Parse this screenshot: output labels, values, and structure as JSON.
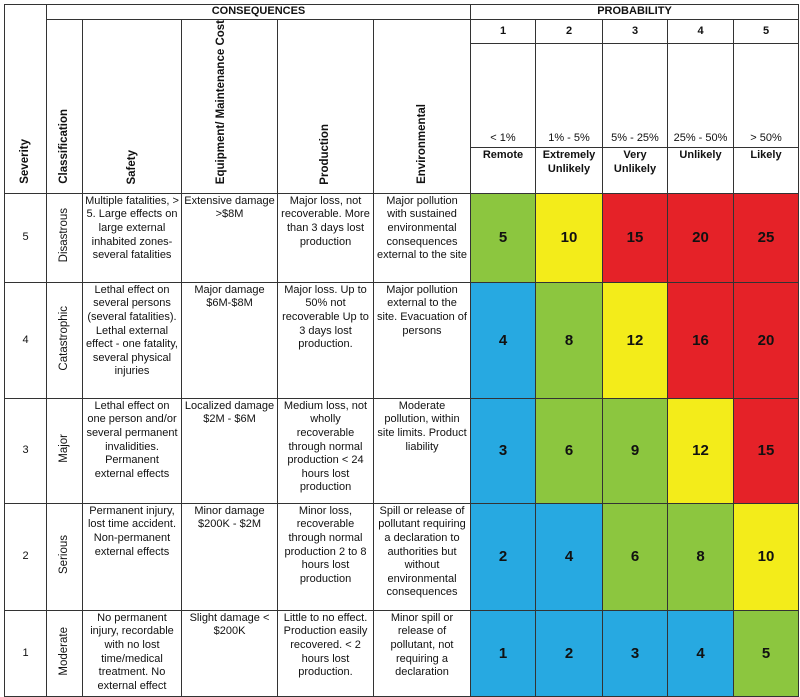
{
  "header": {
    "severity": "Severity",
    "consequences": "CONSEQUENCES",
    "probability": "PROBABILITY",
    "columns": [
      "Classification",
      "Safety",
      "Equipment/ Maintenance Cost",
      "Production",
      "Environmental"
    ],
    "probability_levels": [
      {
        "number": "1",
        "range": "< 1%",
        "label": "Remote"
      },
      {
        "number": "2",
        "range": "1% - 5%",
        "label": "Extremely Unlikely"
      },
      {
        "number": "3",
        "range": "5% - 25%",
        "label": "Very Unlikely"
      },
      {
        "number": "4",
        "range": "25% - 50%",
        "label": "Unlikely"
      },
      {
        "number": "5",
        "range": "> 50%",
        "label": "Likely"
      }
    ]
  },
  "colors": {
    "green": "#8cc63f",
    "yellow": "#f3ec1a",
    "red": "#e52228",
    "blue": "#27a9e1"
  },
  "rows": [
    {
      "severity": "5",
      "classification": "Disastrous",
      "safety": "Multiple fatalities, > 5. Large effects on large external inhabited zones-several fatalities",
      "equipment": "Extensive damage >$8M",
      "production": "Major loss, not recoverable. More than 3 days lost production",
      "environmental": "Major pollution with sustained environmental consequences external to the site",
      "scores": [
        {
          "value": "5",
          "color": "green"
        },
        {
          "value": "10",
          "color": "yellow"
        },
        {
          "value": "15",
          "color": "red"
        },
        {
          "value": "20",
          "color": "red"
        },
        {
          "value": "25",
          "color": "red"
        }
      ]
    },
    {
      "severity": "4",
      "classification": "Catastrophic",
      "safety": "Lethal effect on several persons (several fatalities). Lethal external effect - one fatality, several physical injuries",
      "equipment": "Major damage $6M-$8M",
      "production": "Major loss. Up to 50% not recoverable Up to 3 days lost production.",
      "environmental": "Major pollution external to the site. Evacuation of persons",
      "scores": [
        {
          "value": "4",
          "color": "blue"
        },
        {
          "value": "8",
          "color": "green"
        },
        {
          "value": "12",
          "color": "yellow"
        },
        {
          "value": "16",
          "color": "red"
        },
        {
          "value": "20",
          "color": "red"
        }
      ]
    },
    {
      "severity": "3",
      "classification": "Major",
      "safety": "Lethal effect on one person and/or several permanent invalidities. Permanent external effects",
      "equipment": "Localized damage $2M - $6M",
      "production": "Medium loss, not wholly recoverable through normal production < 24 hours lost production",
      "environmental": "Moderate pollution, within site limits. Product liability",
      "scores": [
        {
          "value": "3",
          "color": "blue"
        },
        {
          "value": "6",
          "color": "green"
        },
        {
          "value": "9",
          "color": "green"
        },
        {
          "value": "12",
          "color": "yellow"
        },
        {
          "value": "15",
          "color": "red"
        }
      ]
    },
    {
      "severity": "2",
      "classification": "Serious",
      "safety": "Permanent injury, lost time accident. Non-permanent external effects",
      "equipment": "Minor damage $200K - $2M",
      "production": "Minor loss, recoverable through normal production 2 to 8 hours lost production",
      "environmental": "Spill or release of pollutant requiring a declaration to authorities but without environmental consequences",
      "scores": [
        {
          "value": "2",
          "color": "blue"
        },
        {
          "value": "4",
          "color": "blue"
        },
        {
          "value": "6",
          "color": "green"
        },
        {
          "value": "8",
          "color": "green"
        },
        {
          "value": "10",
          "color": "yellow"
        }
      ]
    },
    {
      "severity": "1",
      "classification": "Moderate",
      "safety": "No permanent injury, recordable with no lost time/medical treatment. No external effect",
      "equipment": "Slight damage < $200K",
      "production": "Little to no effect. Production easily recovered. < 2 hours lost production.",
      "environmental": "Minor spill or release of pollutant, not requiring a declaration",
      "scores": [
        {
          "value": "1",
          "color": "blue"
        },
        {
          "value": "2",
          "color": "blue"
        },
        {
          "value": "3",
          "color": "blue"
        },
        {
          "value": "4",
          "color": "blue"
        },
        {
          "value": "5",
          "color": "green"
        }
      ]
    }
  ]
}
